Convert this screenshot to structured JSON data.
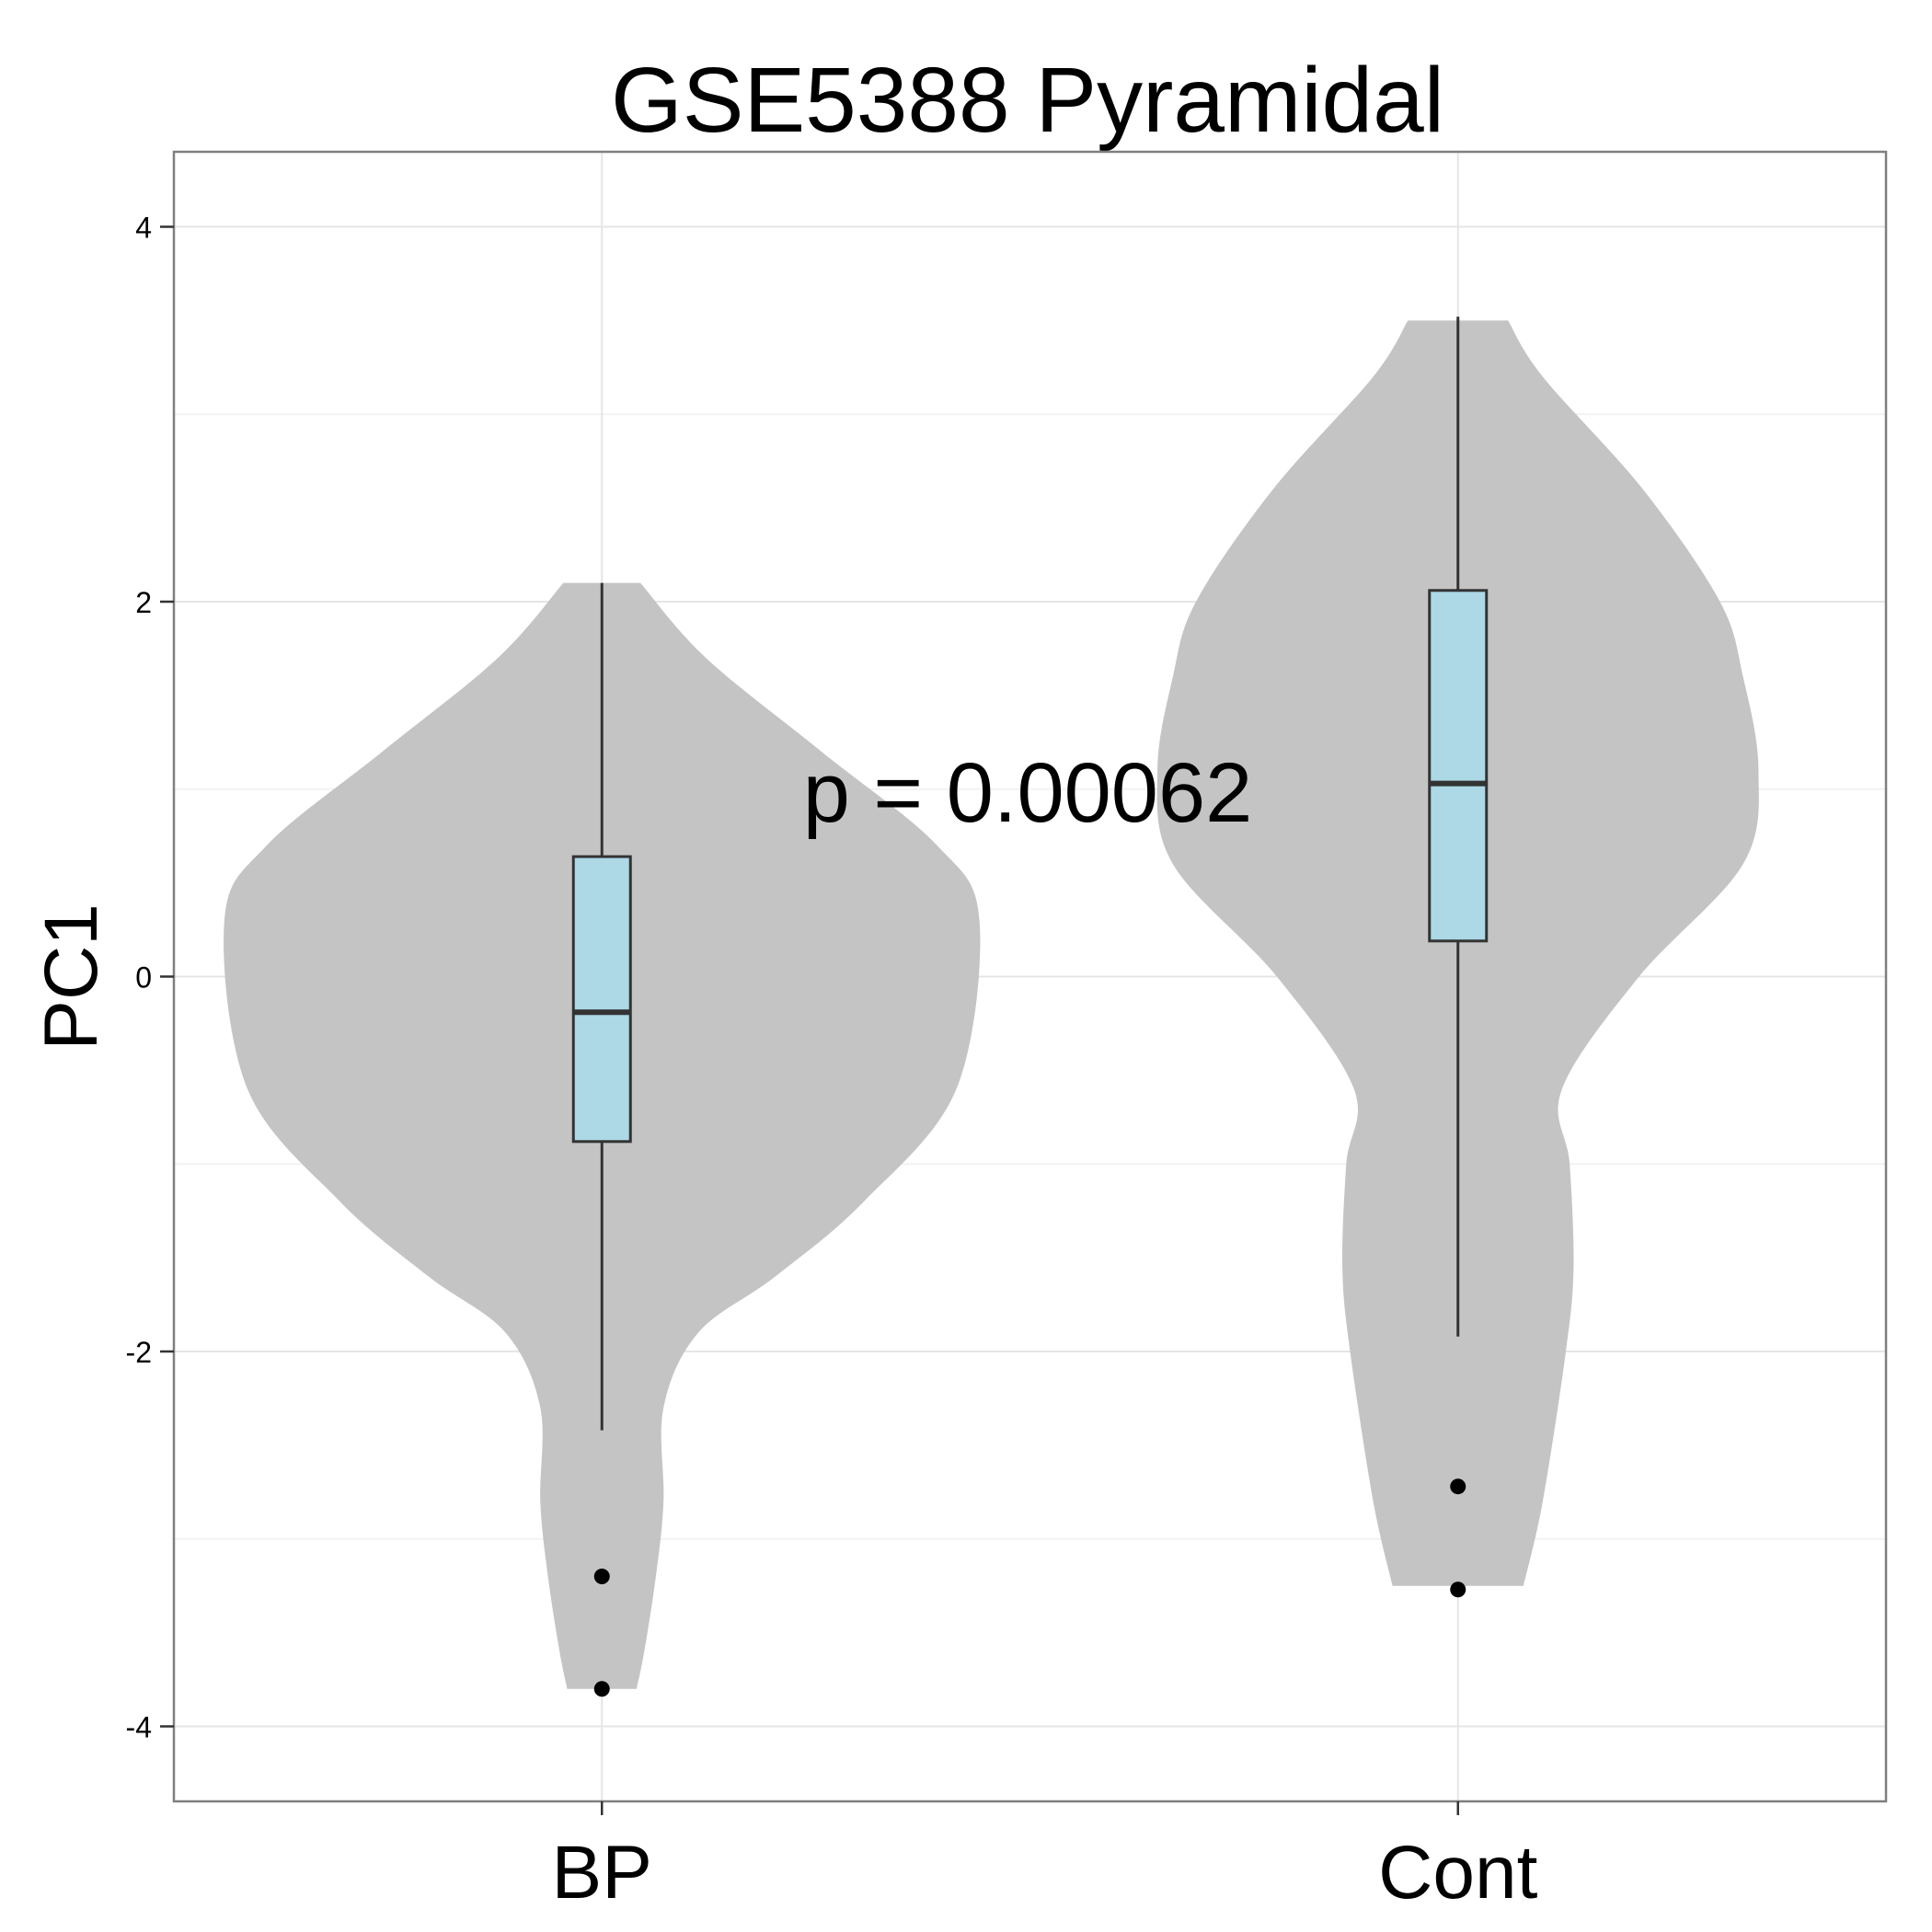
{
  "chart_data": {
    "type": "violin",
    "title": "GSE5388 Pyramidal",
    "xlabel": "",
    "ylabel": "PC1",
    "categories": [
      "BP",
      "Cont"
    ],
    "ylim": [
      -4.4,
      4.4
    ],
    "yticks": [
      -4,
      -2,
      0,
      2,
      4
    ],
    "grid": true,
    "annotation": "p = 0.00062",
    "colors": {
      "violin_fill": "#c4c4c4",
      "box_fill": "#add8e6",
      "box_stroke": "#333333",
      "grid_major": "#e5e5e5",
      "grid_minor": "#f2f2f2",
      "panel_border": "#7f7f7f"
    },
    "groups": [
      {
        "name": "BP",
        "density_profile": [
          [
            -3.8,
            0.09
          ],
          [
            -3.6,
            0.11
          ],
          [
            -3.2,
            0.14
          ],
          [
            -2.8,
            0.16
          ],
          [
            -2.3,
            0.16
          ],
          [
            -1.9,
            0.25
          ],
          [
            -1.6,
            0.45
          ],
          [
            -1.2,
            0.68
          ],
          [
            -0.6,
            0.92
          ],
          [
            0.3,
            0.98
          ],
          [
            0.7,
            0.87
          ],
          [
            1.2,
            0.57
          ],
          [
            1.7,
            0.27
          ],
          [
            2.1,
            0.1
          ]
        ],
        "box": {
          "whisker_low": -2.42,
          "q1": -0.88,
          "median": -0.19,
          "q3": 0.64,
          "whisker_high": 2.1
        },
        "outliers": [
          -3.2,
          -3.8
        ]
      },
      {
        "name": "Cont",
        "density_profile": [
          [
            -3.25,
            0.17
          ],
          [
            -2.8,
            0.22
          ],
          [
            -2.0,
            0.28
          ],
          [
            -1.55,
            0.3
          ],
          [
            -1.0,
            0.29
          ],
          [
            -0.6,
            0.27
          ],
          [
            0.0,
            0.47
          ],
          [
            0.6,
            0.74
          ],
          [
            1.1,
            0.78
          ],
          [
            1.6,
            0.74
          ],
          [
            2.0,
            0.68
          ],
          [
            2.6,
            0.48
          ],
          [
            3.2,
            0.22
          ],
          [
            3.5,
            0.13
          ]
        ],
        "box": {
          "whisker_low": -1.92,
          "q1": 0.19,
          "median": 1.03,
          "q3": 2.06,
          "whisker_high": 3.52
        },
        "outliers": [
          -2.72,
          -3.27
        ]
      }
    ]
  }
}
